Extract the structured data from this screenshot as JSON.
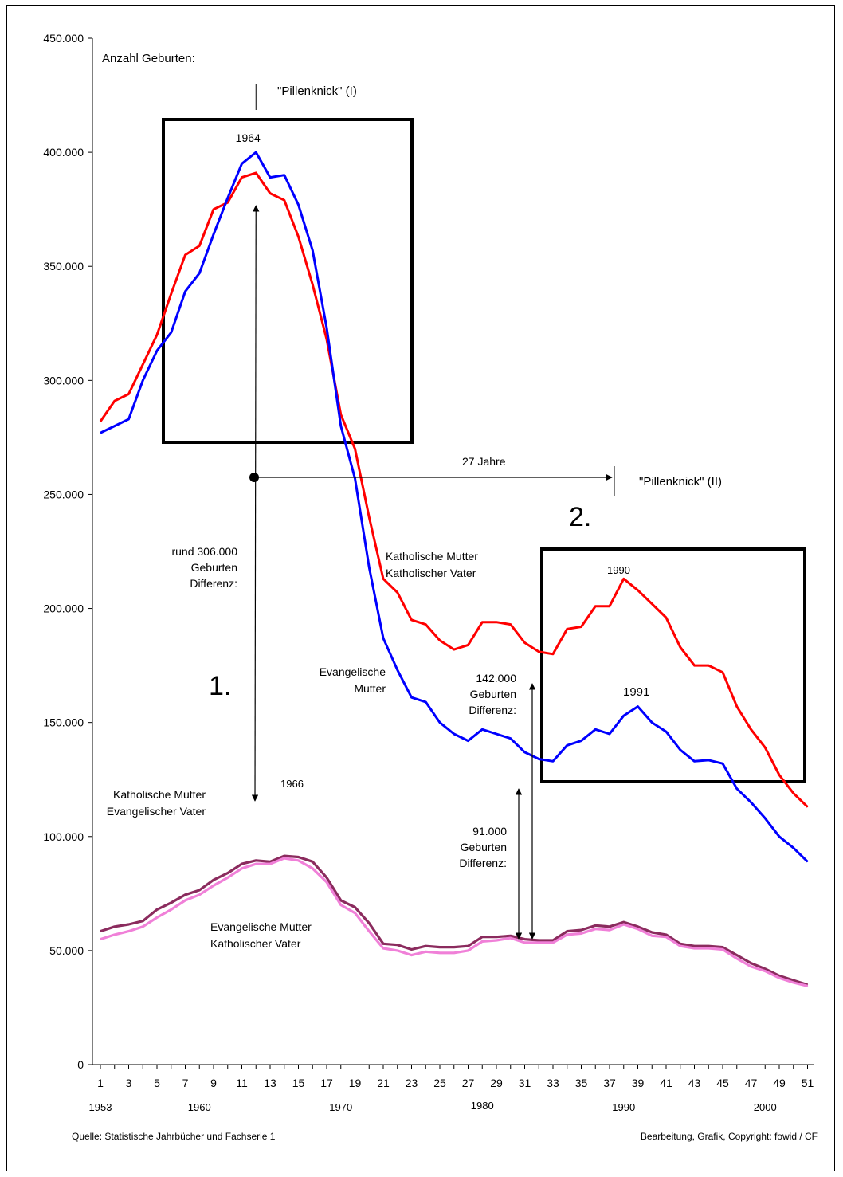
{
  "chart_data": {
    "type": "line",
    "ylabel": "Anzahl Geburten:",
    "ylim": [
      0,
      450000
    ],
    "yticks": [
      "0",
      "50.000",
      "100.000",
      "150.000",
      "200.000",
      "250.000",
      "300.000",
      "350.000",
      "400.000",
      "450.000"
    ],
    "x": [
      1,
      2,
      3,
      4,
      5,
      6,
      7,
      8,
      9,
      10,
      11,
      12,
      13,
      14,
      15,
      16,
      17,
      18,
      19,
      20,
      21,
      22,
      23,
      24,
      25,
      26,
      27,
      28,
      29,
      30,
      31,
      32,
      33,
      34,
      35,
      36,
      37,
      38,
      39,
      40,
      41,
      42,
      43,
      44,
      45,
      46,
      47,
      48,
      49,
      50,
      51
    ],
    "xticks": [
      "1",
      "3",
      "5",
      "7",
      "9",
      "11",
      "13",
      "15",
      "17",
      "19",
      "21",
      "23",
      "25",
      "27",
      "29",
      "31",
      "33",
      "35",
      "37",
      "39",
      "41",
      "43",
      "45",
      "47",
      "49",
      "51"
    ],
    "year_labels": [
      {
        "x": 1,
        "text": "1953",
        "row": 0
      },
      {
        "x": 8,
        "text": "1960",
        "row": 0
      },
      {
        "x": 18,
        "text": "1970",
        "row": 0
      },
      {
        "x": 28,
        "text": "1980",
        "row": 1
      },
      {
        "x": 38,
        "text": "1990",
        "row": 0
      },
      {
        "x": 48,
        "text": "2000",
        "row": 0
      }
    ],
    "series": [
      {
        "color": "#ff0000",
        "values": [
          282000,
          291000,
          294000,
          307000,
          320000,
          338000,
          355000,
          359000,
          375000,
          378000,
          389000,
          391000,
          382000,
          379000,
          363000,
          342000,
          318000,
          285000,
          270000,
          240000,
          213000,
          207000,
          195000,
          193000,
          186000,
          182000,
          184000,
          194000,
          194000,
          193000,
          185000,
          181000,
          180000,
          191000,
          192000,
          201000,
          201000,
          213000,
          208000,
          202000,
          196000,
          183000,
          175000,
          175000,
          172000,
          157000,
          147000,
          139000,
          127000,
          119000,
          113000
        ]
      },
      {
        "color": "#0000ff",
        "values": [
          277000,
          280000,
          283000,
          300000,
          313000,
          321000,
          339000,
          347000,
          364000,
          380000,
          395000,
          400000,
          389000,
          390000,
          377000,
          357000,
          323000,
          280000,
          257000,
          218000,
          187000,
          173000,
          161000,
          159000,
          150000,
          145000,
          142000,
          147000,
          145000,
          143000,
          137000,
          134000,
          133000,
          140000,
          142000,
          147000,
          145000,
          153000,
          157000,
          150000,
          146000,
          138000,
          133000,
          133500,
          132000,
          121000,
          115000,
          108000,
          100000,
          95000,
          89000
        ]
      },
      {
        "color": "#8b2b5e",
        "values": [
          58500,
          60500,
          61500,
          63000,
          68000,
          71000,
          74500,
          76500,
          81000,
          84000,
          88000,
          89500,
          89000,
          91500,
          91000,
          89000,
          82000,
          72000,
          69000,
          62000,
          53000,
          52500,
          50500,
          52000,
          51500,
          51500,
          52000,
          56000,
          56000,
          56500,
          55000,
          54500,
          54500,
          58500,
          59000,
          61000,
          60500,
          62500,
          60500,
          58000,
          57000,
          53000,
          52000,
          52000,
          51500,
          48000,
          44500,
          42000,
          39000,
          37000,
          35000
        ]
      },
      {
        "color": "#f080d8",
        "values": [
          55000,
          57000,
          58500,
          60500,
          64500,
          68000,
          72000,
          74500,
          78500,
          82000,
          86000,
          88000,
          88000,
          90500,
          89500,
          86000,
          80000,
          70000,
          66500,
          58500,
          51000,
          50000,
          48000,
          49500,
          49000,
          49000,
          50000,
          54000,
          54500,
          55500,
          53500,
          53500,
          53500,
          57000,
          57500,
          59500,
          59000,
          61500,
          59500,
          56500,
          56000,
          52000,
          51000,
          51000,
          50500,
          46500,
          43000,
          41000,
          38000,
          36000,
          34500
        ]
      }
    ],
    "annotations": {
      "pillenknick1": "\"Pillenknick\" (I)",
      "pillenknick2": "\"Pillenknick\" (II)",
      "y1964": "1964",
      "y1966": "1966",
      "y1990": "1990",
      "y1991": "1991",
      "jahre27": "27 Jahre",
      "step1": "1.",
      "step2": "2.",
      "diff306": [
        "rund 306.000",
        "Geburten",
        "Differenz:"
      ],
      "diff142": [
        "142.000",
        "Geburten",
        "Differenz:"
      ],
      "diff91": [
        "91.000",
        "Geburten",
        "Differenz:"
      ],
      "kath_kath": [
        "Katholische Mutter",
        "Katholischer Vater"
      ],
      "evang": [
        "Evangelische",
        "Mutter"
      ],
      "kath_evang": [
        "Katholische Mutter",
        "Evangelischer Vater"
      ],
      "evang_kath": [
        "Evangelische Mutter",
        "Katholischer Vater"
      ]
    }
  },
  "footer": {
    "source": "Quelle: Statistische Jahrbücher und Fachserie 1",
    "copyright": "Bearbeitung, Grafik, Copyright: fowid / CF"
  }
}
